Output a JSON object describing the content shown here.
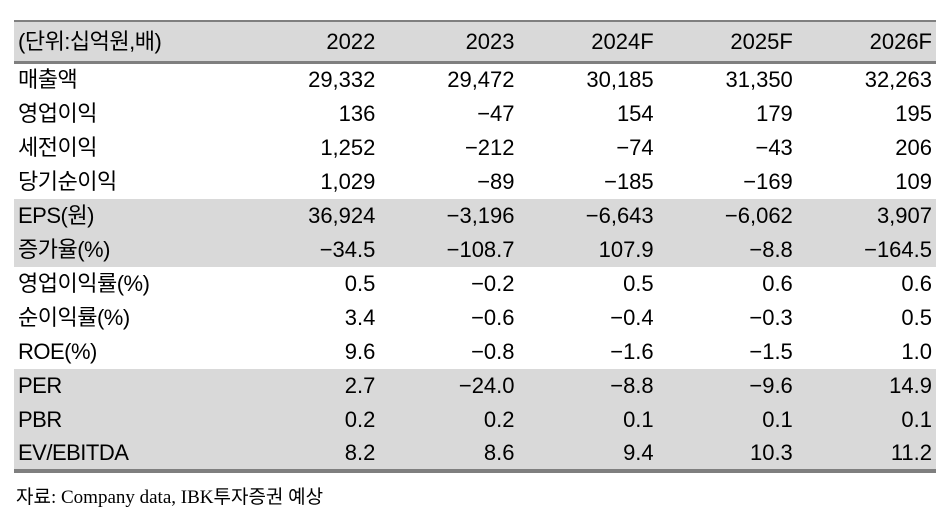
{
  "table": {
    "unit_label": "(단위:십억원,배)",
    "columns": [
      "2022",
      "2023",
      "2024F",
      "2025F",
      "2026F"
    ],
    "rows": [
      {
        "label": "매출액",
        "values": [
          "29,332",
          "29,472",
          "30,185",
          "31,350",
          "32,263"
        ],
        "shaded": false
      },
      {
        "label": "영업이익",
        "values": [
          "136",
          "−47",
          "154",
          "179",
          "195"
        ],
        "shaded": false
      },
      {
        "label": "세전이익",
        "values": [
          "1,252",
          "−212",
          "−74",
          "−43",
          "206"
        ],
        "shaded": false
      },
      {
        "label": "당기순이익",
        "values": [
          "1,029",
          "−89",
          "−185",
          "−169",
          "109"
        ],
        "shaded": false
      },
      {
        "label": "EPS(원)",
        "values": [
          "36,924",
          "−3,196",
          "−6,643",
          "−6,062",
          "3,907"
        ],
        "shaded": true
      },
      {
        "label": "증가율(%)",
        "values": [
          "−34.5",
          "−108.7",
          "107.9",
          "−8.8",
          "−164.5"
        ],
        "shaded": true
      },
      {
        "label": "영업이익률(%)",
        "values": [
          "0.5",
          "−0.2",
          "0.5",
          "0.6",
          "0.6"
        ],
        "shaded": false
      },
      {
        "label": "순이익률(%)",
        "values": [
          "3.4",
          "−0.6",
          "−0.4",
          "−0.3",
          "0.5"
        ],
        "shaded": false
      },
      {
        "label": "ROE(%)",
        "values": [
          "9.6",
          "−0.8",
          "−1.6",
          "−1.5",
          "1.0"
        ],
        "shaded": false
      },
      {
        "label": "PER",
        "values": [
          "2.7",
          "−24.0",
          "−8.8",
          "−9.6",
          "14.9"
        ],
        "shaded": true
      },
      {
        "label": "PBR",
        "values": [
          "0.2",
          "0.2",
          "0.1",
          "0.1",
          "0.1"
        ],
        "shaded": true
      },
      {
        "label": "EV/EBITDA",
        "values": [
          "8.2",
          "8.6",
          "9.4",
          "10.3",
          "11.2"
        ],
        "shaded": true
      }
    ],
    "source": "자료: Company data, IBK투자증권 예상"
  },
  "colors": {
    "row_shade": "#d9d9d9",
    "rule": "#7f7f7f",
    "text": "#000000",
    "background": "#ffffff"
  }
}
